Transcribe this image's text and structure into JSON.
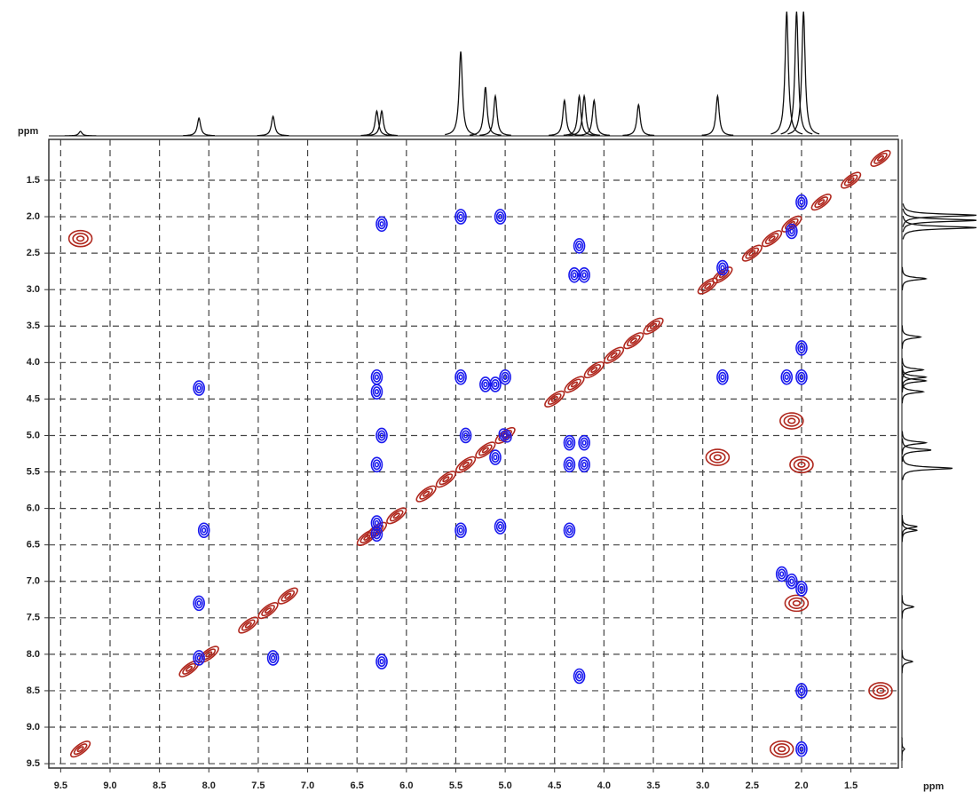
{
  "chart_data": {
    "type": "contour",
    "x_label": "ppm",
    "y_label": "ppm",
    "xlim": [
      9.62,
      1.02
    ],
    "ylim": [
      0.94,
      9.56
    ],
    "xticks": [
      9.5,
      {
        "value": 9,
        "label": "9.0"
      },
      8.5,
      {
        "value": 8,
        "label": "8.0"
      },
      7.5,
      {
        "value": 7,
        "label": "7.0"
      },
      6.5,
      {
        "value": 6,
        "label": "6.0"
      },
      5.5,
      {
        "value": 5,
        "label": "5.0"
      },
      4.5,
      {
        "value": 4,
        "label": "4.0"
      },
      3.5,
      {
        "value": 3,
        "label": "3.0"
      },
      2.5,
      {
        "value": 2,
        "label": "2.0"
      },
      1.5
    ],
    "yticks": [
      1.5,
      {
        "value": 2,
        "label": "2.0"
      },
      2.5,
      {
        "value": 3,
        "label": "3.0"
      },
      3.5,
      {
        "value": 4,
        "label": "4.0"
      },
      4.5,
      {
        "value": 5,
        "label": "5.0"
      },
      5.5,
      {
        "value": 6,
        "label": "6.0"
      },
      6.5,
      {
        "value": 7,
        "label": "7.0"
      },
      7.5,
      {
        "value": 8,
        "label": "8.0"
      },
      8.5,
      {
        "value": 9,
        "label": "9.0"
      },
      9.5
    ],
    "grid": true,
    "projection": {
      "color": "#111111",
      "x": [
        9.3,
        8.1,
        7.35,
        6.3,
        6.25,
        5.45,
        5.2,
        5.1,
        4.4,
        4.25,
        4.2,
        4.1,
        3.65,
        2.85,
        2.15,
        2.05,
        1.98
      ],
      "values": [
        5,
        20,
        22,
        28,
        28,
        95,
        55,
        45,
        40,
        45,
        45,
        40,
        35,
        45,
        140,
        140,
        140
      ]
    },
    "series": [
      {
        "color": "#b0281e",
        "x": [
          1.2,
          1.5,
          1.8,
          2.1,
          2.3,
          2.5,
          2.8,
          2.95,
          3.5,
          3.7,
          3.9,
          4.1,
          4.3,
          4.5,
          5.0,
          5.2,
          5.4,
          5.6,
          5.8,
          6.1,
          6.3,
          6.4,
          7.2,
          7.4,
          7.6,
          8.0,
          8.2,
          9.3,
          9.3,
          2.2,
          2.0,
          2.1,
          2.05,
          1.2,
          2.85
        ],
        "y": [
          1.2,
          1.5,
          1.8,
          2.1,
          2.3,
          2.5,
          2.8,
          2.95,
          3.5,
          3.7,
          3.9,
          4.1,
          4.3,
          4.5,
          5.0,
          5.2,
          5.4,
          5.6,
          5.8,
          6.1,
          6.3,
          6.4,
          7.2,
          7.4,
          7.6,
          8.0,
          8.2,
          2.3,
          9.3,
          9.3,
          5.4,
          4.8,
          7.3,
          8.5,
          5.3
        ]
      },
      {
        "color": "#1a1aee",
        "x": [
          6.25,
          5.45,
          5.05,
          4.3,
          4.2,
          4.25,
          2.8,
          2.0,
          2.1,
          8.1,
          6.3,
          6.3,
          5.45,
          5.2,
          5.1,
          5.0,
          2.8,
          2.15,
          2.0,
          2.0,
          6.25,
          6.3,
          5.4,
          5.1,
          5.0,
          4.35,
          4.2,
          4.2,
          4.35,
          6.3,
          6.3,
          5.45,
          5.05,
          4.35,
          8.1,
          7.35,
          8.1,
          2.2,
          2.1,
          2.0,
          4.25,
          6.25,
          2.0,
          2.0,
          8.05
        ],
        "y": [
          2.1,
          2.0,
          2.0,
          2.8,
          2.8,
          2.4,
          2.7,
          1.8,
          2.2,
          4.35,
          4.2,
          4.4,
          4.2,
          4.3,
          4.3,
          4.2,
          4.2,
          4.2,
          4.2,
          3.8,
          5.0,
          5.4,
          5.0,
          5.3,
          5.0,
          5.1,
          5.1,
          5.4,
          5.4,
          6.2,
          6.35,
          6.3,
          6.25,
          6.3,
          7.3,
          8.05,
          8.05,
          6.9,
          7.0,
          7.1,
          8.3,
          8.1,
          9.3,
          8.5,
          6.3
        ]
      }
    ]
  }
}
